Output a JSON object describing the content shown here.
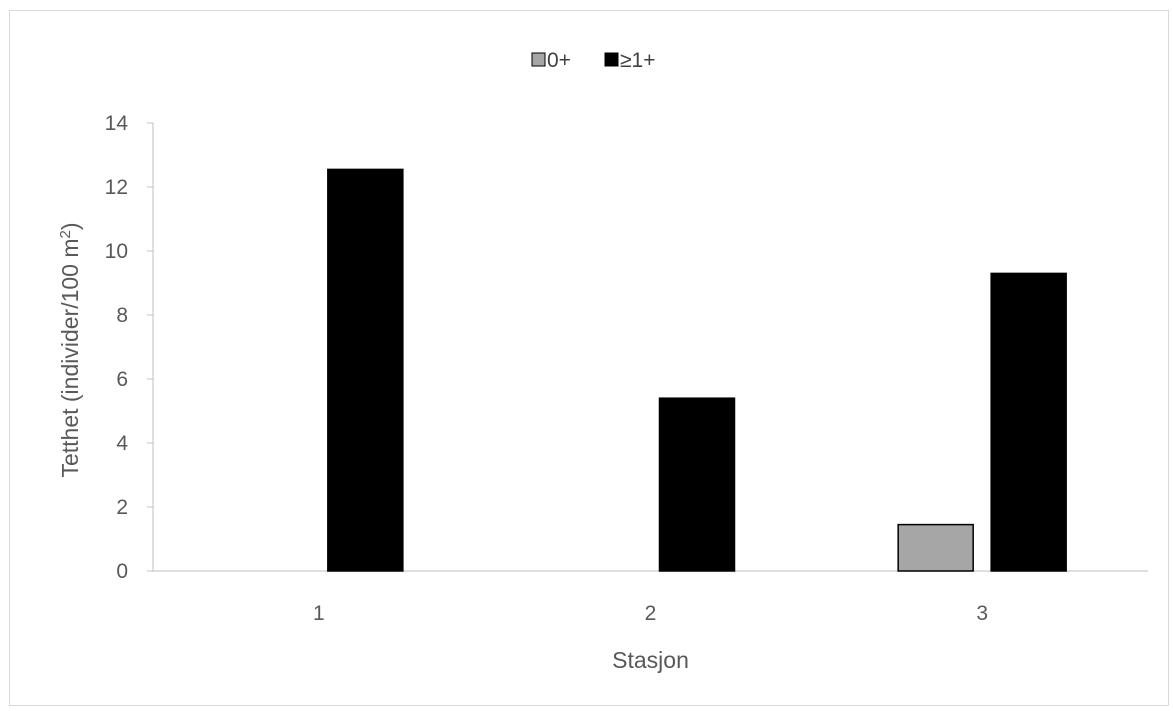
{
  "chart_data": {
    "type": "bar",
    "categories": [
      "1",
      "2",
      "3"
    ],
    "series": [
      {
        "name": "0+",
        "values": [
          0,
          0,
          1.45
        ],
        "color": "#a6a6a6"
      },
      {
        "name": "≥1+",
        "values": [
          12.55,
          5.4,
          9.3
        ],
        "color": "#000000"
      }
    ],
    "xlabel": "Stasjon",
    "ylabel_main": "Tetthet (individer/100 m",
    "ylabel_sup": "2",
    "ylabel_close": ")",
    "ylim": [
      0,
      14
    ],
    "yticks": [
      0,
      2,
      4,
      6,
      8,
      10,
      12,
      14
    ],
    "grid": false,
    "legend_position": "top-center"
  }
}
